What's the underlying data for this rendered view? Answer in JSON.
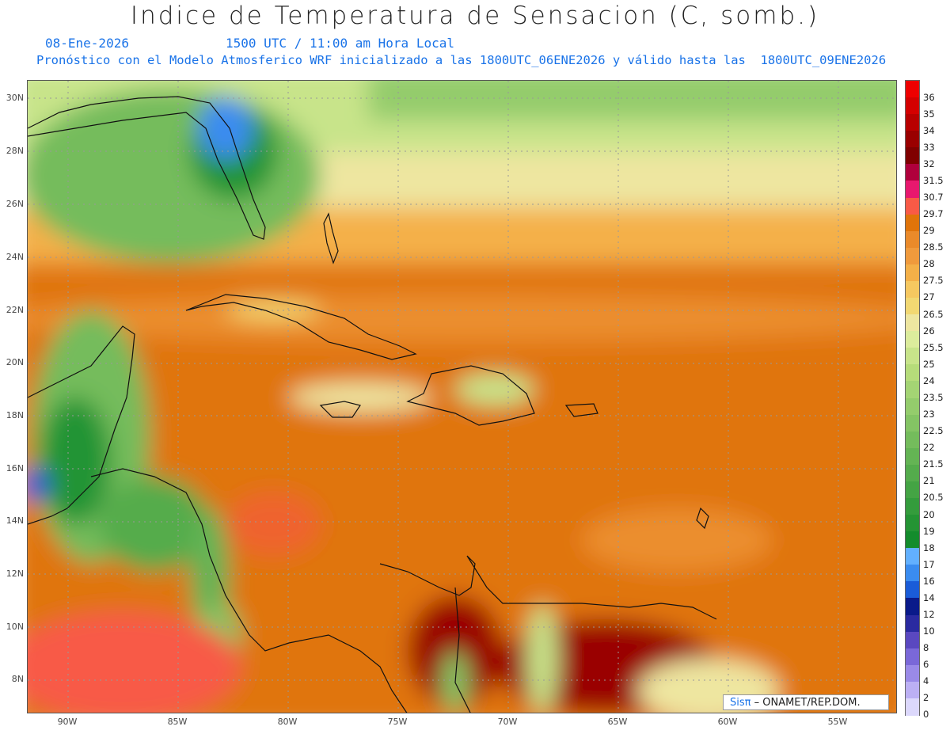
{
  "title": "Indice de Temperatura de Sensacion (C, somb.)",
  "subtitle": {
    "date": "08-Ene-2026",
    "time": "1500 UTC / 11:00 am Hora Local",
    "model": "Pronóstico con el Modelo Atmosferico WRF inicializado a las 1800UTC_06ENE2026 y válido hasta las  1800UTC_09ENE2026"
  },
  "map": {
    "lat_labels": [
      "30N",
      "28N",
      "26N",
      "24N",
      "22N",
      "20N",
      "18N",
      "16N",
      "14N",
      "12N",
      "10N",
      "8N"
    ],
    "lon_labels": [
      "90W",
      "85W",
      "80W",
      "75W",
      "70W",
      "65W",
      "60W",
      "55W"
    ],
    "credit_brand": "Sisπ",
    "credit_org": " – ONAMET/REP.DOM."
  },
  "colorbar": {
    "levels": [
      "36",
      "35",
      "34",
      "33",
      "32",
      "31.5",
      "30.7",
      "29.7",
      "29",
      "28.5",
      "28",
      "27.5",
      "27",
      "26.5",
      "26",
      "25.5",
      "25",
      "24",
      "23.5",
      "23",
      "22.5",
      "22",
      "21.5",
      "21",
      "20.5",
      "20",
      "19",
      "18",
      "17",
      "16",
      "14",
      "12",
      "10",
      "8",
      "6",
      "4",
      "2",
      "0"
    ],
    "colors": [
      "#ee0000",
      "#d40000",
      "#b80000",
      "#9a0000",
      "#800000",
      "#b0003c",
      "#e8186e",
      "#f85a46",
      "#e0740a",
      "#ea8a2a",
      "#f09a3c",
      "#f4b048",
      "#f6c860",
      "#f2d872",
      "#eee6a0",
      "#dcec9c",
      "#c8e48a",
      "#b6dc7a",
      "#a4d474",
      "#94cc6c",
      "#84c464",
      "#74bc5c",
      "#64b454",
      "#54ac4c",
      "#44a444",
      "#349c3c",
      "#249434",
      "#148c2c",
      "#62b0ff",
      "#3a8cf0",
      "#1a5cd8",
      "#0a1a8a",
      "#2a2aa0",
      "#5a48c0",
      "#7a68d8",
      "#9a8ae8",
      "#bcb0f4",
      "#dcd8fc"
    ]
  }
}
